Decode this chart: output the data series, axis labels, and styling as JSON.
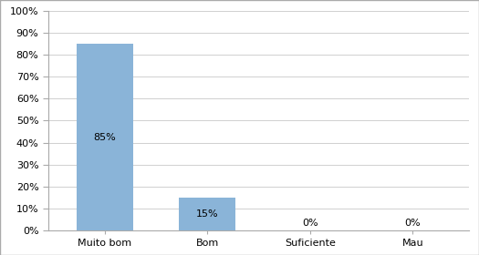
{
  "categories": [
    "Muito bom",
    "Bom",
    "Suficiente",
    "Mau"
  ],
  "values": [
    85,
    15,
    0,
    0
  ],
  "bar_color": "#8ab4d8",
  "ylim": [
    0,
    100
  ],
  "yticks": [
    0,
    10,
    20,
    30,
    40,
    50,
    60,
    70,
    80,
    90,
    100
  ],
  "label_fontsize": 8,
  "tick_fontsize": 8,
  "bar_width": 0.55,
  "background_color": "#ffffff",
  "label_color": "#000000",
  "border_color": "#c0c0c0",
  "grid_color": "#d0d0d0"
}
